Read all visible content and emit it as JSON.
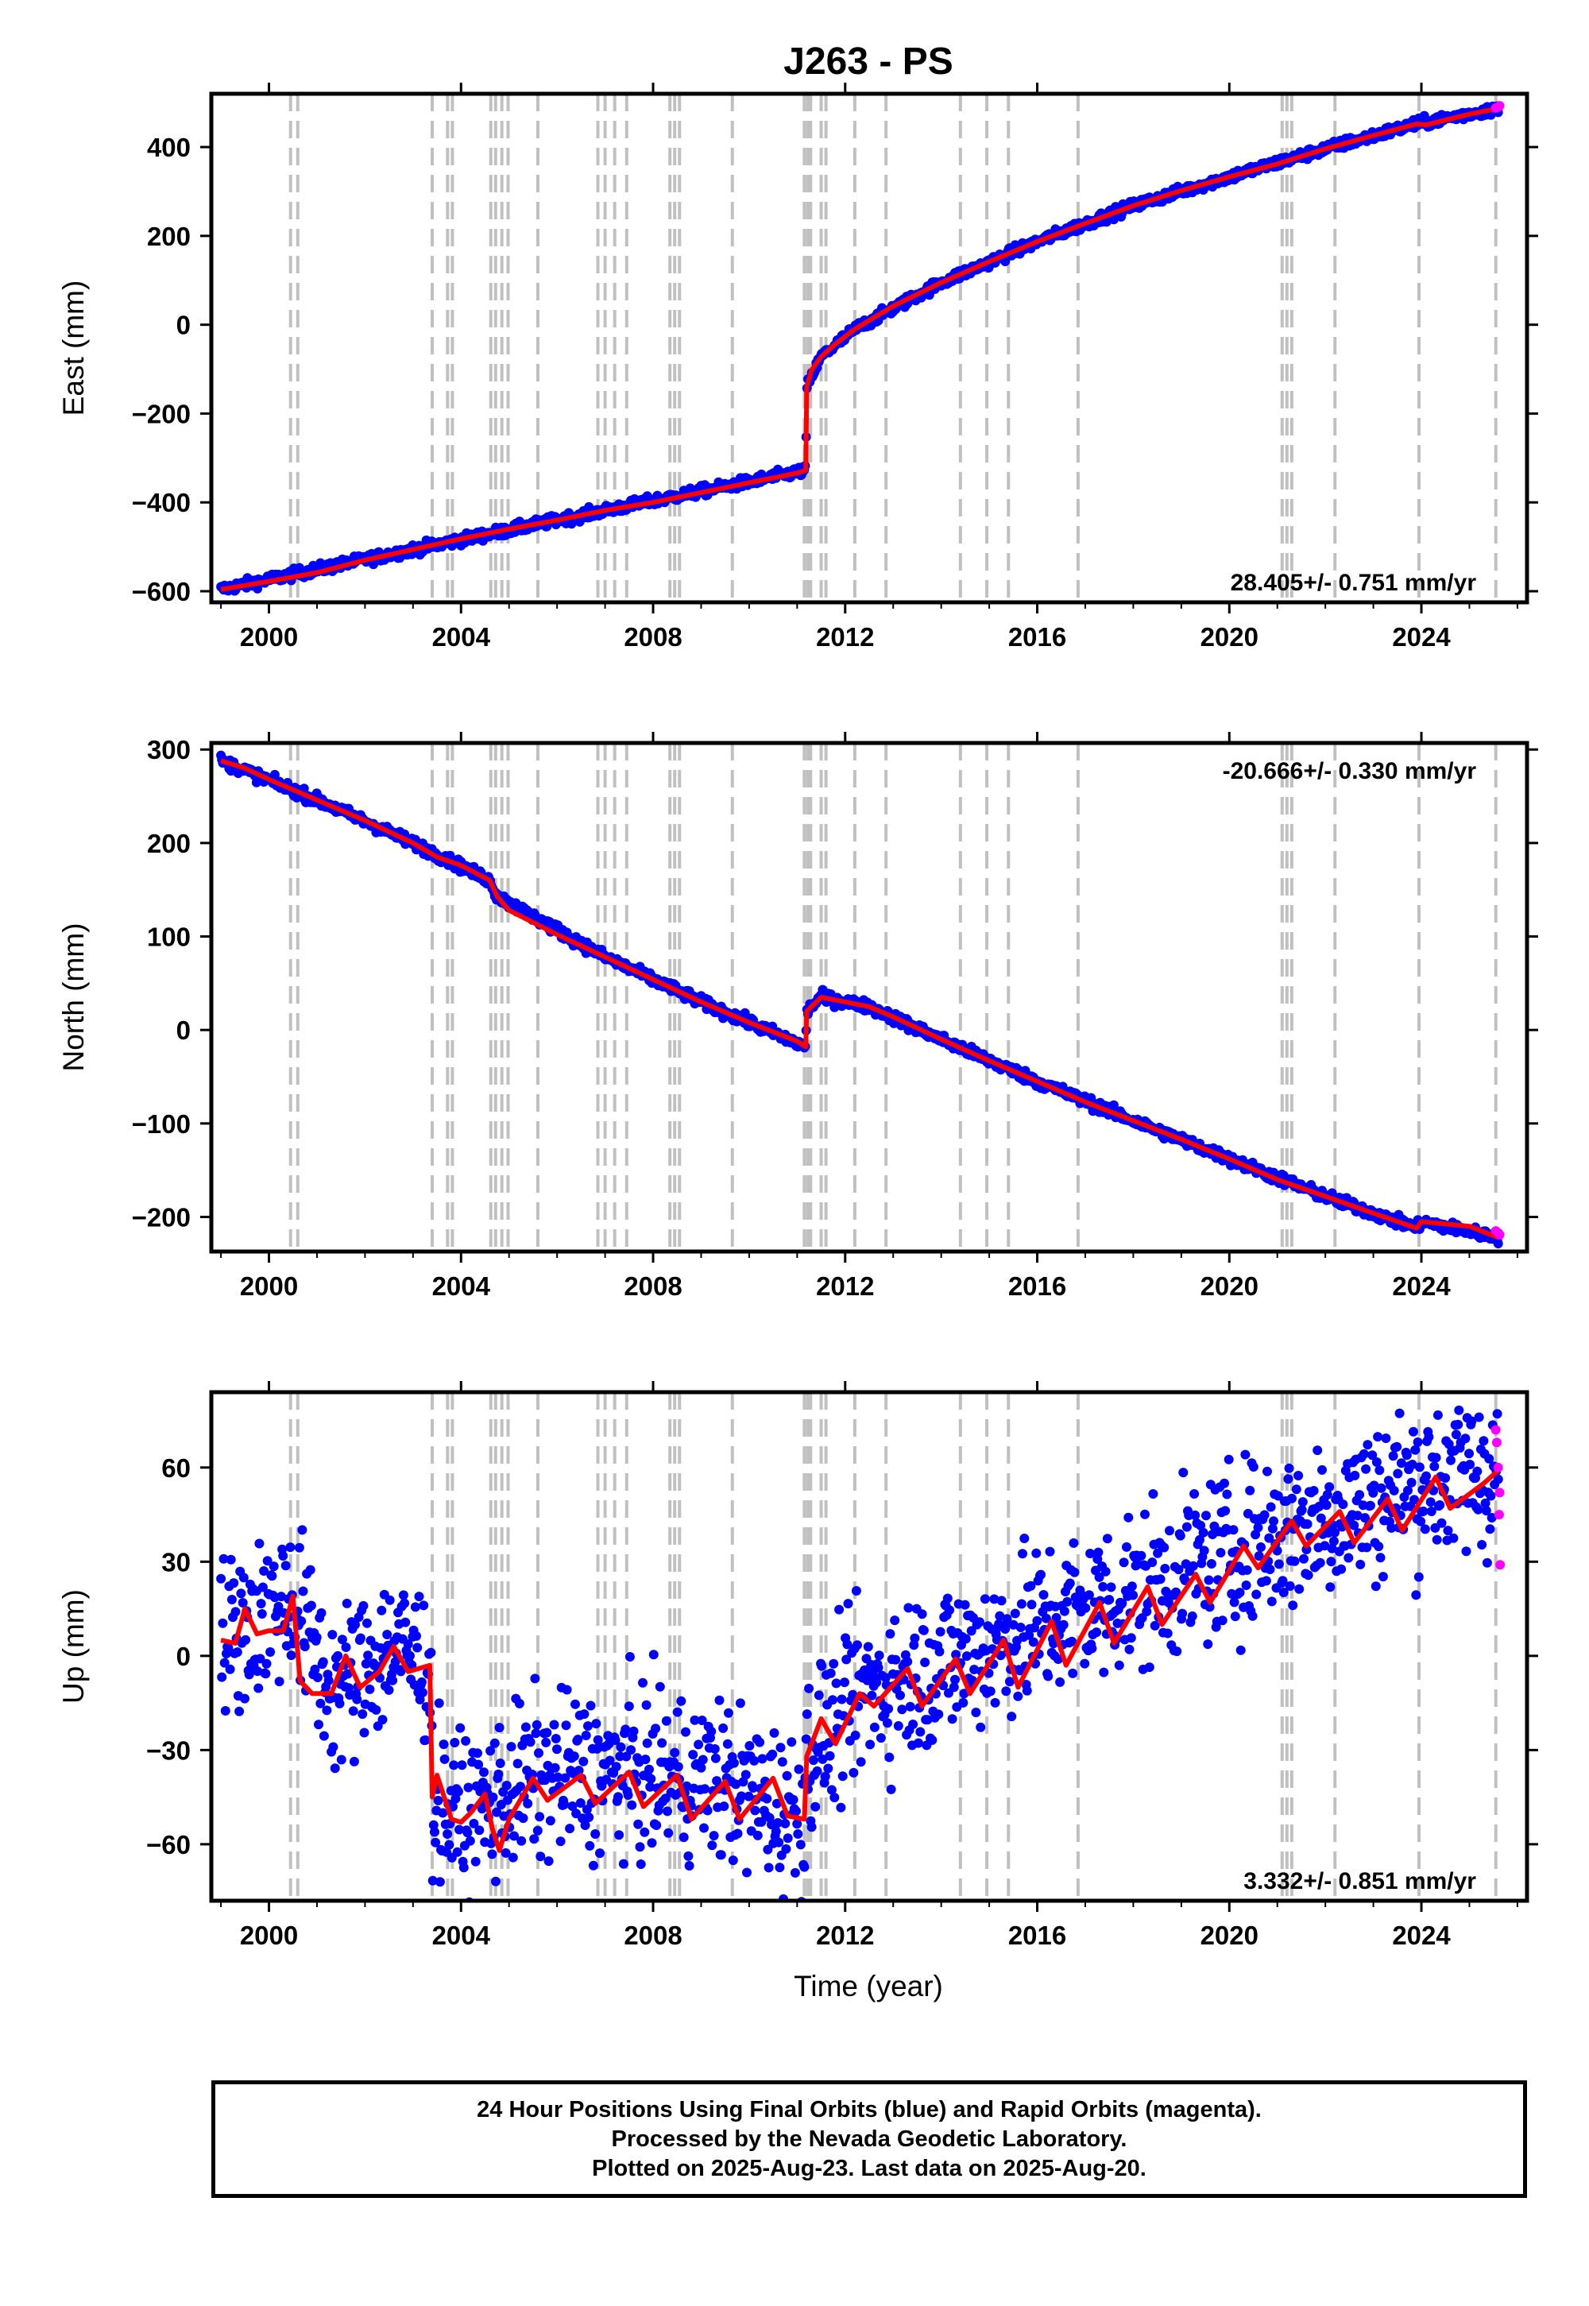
{
  "chart_data": {
    "type": "scatter",
    "title": "J263 - PS",
    "xlabel": "Time (year)",
    "xlim": [
      1998.8,
      2026.2
    ],
    "x_ticks": [
      2000,
      2004,
      2008,
      2012,
      2016,
      2020,
      2024
    ],
    "x_tick_labels": [
      "2000",
      "2004",
      "2008",
      "2012",
      "2016",
      "2020",
      "2024"
    ],
    "grid": false,
    "event_lines_x": [
      2000.45,
      2000.6,
      2003.4,
      2003.72,
      2003.82,
      2004.62,
      2004.72,
      2004.85,
      2004.98,
      2005.6,
      2006.85,
      2007.0,
      2007.2,
      2007.45,
      2008.35,
      2008.45,
      2008.55,
      2009.65,
      2011.15,
      2011.22,
      2011.28,
      2011.5,
      2011.6,
      2012.2,
      2012.85,
      2014.4,
      2014.95,
      2015.4,
      2016.85,
      2021.1,
      2021.2,
      2021.3,
      2022.2,
      2023.95,
      2025.55
    ],
    "colors": {
      "final_orbits": "#0000ff",
      "rapid_orbits": "#ff00ff",
      "model": "#ff0000",
      "event_lines": "#c0c0c0"
    },
    "panels": [
      {
        "name": "east",
        "ylabel": "East (mm)",
        "ylim": [
          -625,
          520
        ],
        "y_ticks": [
          -600,
          -400,
          -200,
          0,
          200,
          400
        ],
        "y_tick_labels": [
          "−600",
          "−400",
          "−200",
          "0",
          "200",
          "400"
        ],
        "rate_text": "28.405+/- 0.751 mm/yr",
        "rate_position": "bottom-right",
        "model_series": {
          "x": [
            1999.0,
            2000.0,
            2001.0,
            2002.0,
            2003.0,
            2004.0,
            2005.0,
            2006.0,
            2007.0,
            2008.0,
            2009.0,
            2010.0,
            2011.0,
            2011.18,
            2011.2,
            2011.3,
            2011.5,
            2011.8,
            2012.2,
            2013.0,
            2014.0,
            2015.0,
            2016.0,
            2017.0,
            2018.0,
            2019.0,
            2020.0,
            2021.0,
            2022.0,
            2023.0,
            2023.9,
            2024.1,
            2025.0,
            2025.6
          ],
          "y": [
            -596,
            -578,
            -558,
            -530,
            -506,
            -482,
            -460,
            -440,
            -418,
            -400,
            -378,
            -356,
            -334,
            -328,
            -140,
            -102,
            -72,
            -43,
            -10,
            42,
            95,
            142,
            187,
            228,
            268,
            302,
            333,
            362,
            396,
            426,
            452,
            450,
            474,
            487
          ]
        },
        "final_orbits": {
          "noise": 6,
          "x": [
            1999.0,
            2003.0,
            2007.0,
            2011.18,
            2011.2,
            2011.5,
            2012.2,
            2014.0,
            2016.0,
            2018.0,
            2020.0,
            2022.0,
            2023.9,
            2025.6
          ],
          "y": [
            -596,
            -506,
            -418,
            -328,
            -140,
            -72,
            -10,
            95,
            187,
            268,
            333,
            396,
            452,
            487
          ]
        },
        "rapid_orbits": {
          "x": [
            2025.55,
            2025.6,
            2025.63
          ],
          "y": [
            488,
            490,
            493
          ]
        }
      },
      {
        "name": "north",
        "ylabel": "North (mm)",
        "ylim": [
          -237,
          307
        ],
        "y_ticks": [
          -200,
          -100,
          0,
          100,
          200,
          300
        ],
        "y_tick_labels": [
          "−200",
          "−100",
          "0",
          "100",
          "200",
          "300"
        ],
        "rate_text": "-20.666+/- 0.330 mm/yr",
        "rate_position": "top-right",
        "model_series": {
          "x": [
            1999.0,
            1999.5,
            2000.0,
            2001.0,
            2002.0,
            2003.0,
            2003.5,
            2004.0,
            2004.6,
            2004.75,
            2005.0,
            2006.0,
            2007.0,
            2008.0,
            2009.0,
            2010.0,
            2011.0,
            2011.18,
            2011.2,
            2011.5,
            2012.0,
            2012.5,
            2013.0,
            2014.0,
            2015.0,
            2016.0,
            2017.0,
            2018.0,
            2019.0,
            2020.0,
            2021.0,
            2022.0,
            2023.0,
            2023.9,
            2024.0,
            2025.0,
            2025.6
          ],
          "y": [
            288,
            280,
            268,
            246,
            224,
            200,
            185,
            176,
            160,
            143,
            128,
            102,
            78,
            54,
            30,
            8,
            -12,
            -18,
            20,
            35,
            30,
            25,
            14,
            -10,
            -33,
            -55,
            -77,
            -97,
            -117,
            -138,
            -160,
            -178,
            -196,
            -212,
            -205,
            -210,
            -222
          ]
        },
        "final_orbits": {
          "noise": 3,
          "x": [
            1999.0,
            2001.0,
            2003.0,
            2004.6,
            2004.75,
            2007.0,
            2009.0,
            2011.18,
            2011.2,
            2011.5,
            2012.5,
            2014.0,
            2016.0,
            2018.0,
            2020.0,
            2022.0,
            2023.9,
            2024.0,
            2025.6
          ],
          "y": [
            288,
            246,
            200,
            160,
            143,
            78,
            30,
            -18,
            20,
            35,
            25,
            -10,
            -55,
            -97,
            -138,
            -178,
            -212,
            -205,
            -222
          ]
        },
        "rapid_orbits": {
          "x": [
            2025.55,
            2025.6,
            2025.63
          ],
          "y": [
            -215,
            -217,
            -219
          ]
        }
      },
      {
        "name": "up",
        "ylabel": "Up (mm)",
        "ylim": [
          -78,
          84
        ],
        "y_ticks": [
          -60,
          -30,
          0,
          30,
          60
        ],
        "y_tick_labels": [
          "−60",
          "−30",
          "0",
          "30",
          "60"
        ],
        "rate_text": "3.332+/- 0.851 mm/yr",
        "rate_position": "bottom-right",
        "model_series": {
          "x": [
            1999.0,
            1999.3,
            1999.5,
            1999.75,
            2000.0,
            2000.3,
            2000.5,
            2000.65,
            2000.9,
            2001.3,
            2001.6,
            2001.9,
            2002.3,
            2002.6,
            2002.9,
            2003.35,
            2003.4,
            2003.5,
            2003.8,
            2004.0,
            2004.2,
            2004.5,
            2004.65,
            2004.8,
            2005.0,
            2005.5,
            2005.8,
            2006.5,
            2006.8,
            2007.5,
            2007.8,
            2008.5,
            2008.8,
            2009.5,
            2009.8,
            2010.5,
            2010.8,
            2011.15,
            2011.2,
            2011.5,
            2011.8,
            2012.3,
            2012.6,
            2013.3,
            2013.6,
            2014.3,
            2014.6,
            2015.3,
            2015.6,
            2016.3,
            2016.6,
            2017.3,
            2017.6,
            2018.3,
            2018.6,
            2019.3,
            2019.6,
            2020.3,
            2020.6,
            2021.3,
            2021.6,
            2022.3,
            2022.6,
            2023.3,
            2023.6,
            2024.3,
            2024.6,
            2025.3,
            2025.6
          ],
          "y": [
            5,
            4,
            15,
            7,
            8,
            8,
            19,
            -8,
            -12,
            -12,
            0,
            -10,
            -5,
            3,
            -5,
            -3,
            -45,
            -38,
            -52,
            -53,
            -50,
            -44,
            -55,
            -62,
            -52,
            -39,
            -46,
            -38,
            -47,
            -37,
            -48,
            -38,
            -52,
            -40,
            -52,
            -39,
            -51,
            -52,
            -32,
            -20,
            -28,
            -12,
            -16,
            -4,
            -16,
            -1,
            -12,
            5,
            -10,
            11,
            -3,
            17,
            4,
            22,
            10,
            26,
            17,
            35,
            28,
            43,
            35,
            46,
            36,
            50,
            40,
            57,
            47,
            55,
            59
          ]
        },
        "final_orbits": {
          "noise": 13,
          "x": [
            1999.0,
            2000.5,
            2001.3,
            2002.6,
            2003.35,
            2003.4,
            2004.0,
            2005.5,
            2007.5,
            2009.5,
            2011.15,
            2011.2,
            2012.3,
            2014.3,
            2016.3,
            2018.3,
            2020.3,
            2022.3,
            2024.3,
            2025.6
          ],
          "y": [
            5,
            19,
            -12,
            3,
            -3,
            -45,
            -53,
            -39,
            -37,
            -40,
            -52,
            -32,
            -12,
            -1,
            11,
            22,
            35,
            46,
            57,
            59
          ]
        },
        "rapid_orbits": {
          "x": [
            2025.55,
            2025.57,
            2025.6,
            2025.62,
            2025.63,
            2025.64
          ],
          "y": [
            72,
            68,
            60,
            45,
            52,
            29
          ]
        }
      }
    ]
  },
  "footer": {
    "line1": "24 Hour Positions Using Final Orbits (blue) and Rapid Orbits (magenta).",
    "line2": "Processed by the Nevada Geodetic Laboratory.",
    "line3": "Plotted on 2025-Aug-23. Last data on 2025-Aug-20."
  }
}
